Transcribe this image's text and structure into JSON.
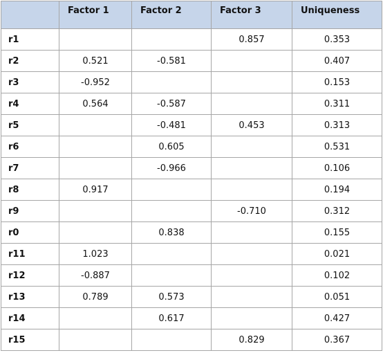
{
  "table": {
    "columns": [
      null,
      "Factor 1",
      "Factor 2",
      "Factor 3",
      "Uniqueness"
    ],
    "rows": [
      [
        "r1",
        null,
        null,
        "0.857",
        "0.353"
      ],
      [
        "r2",
        "0.521",
        "-0.581",
        null,
        "0.407"
      ],
      [
        "r3",
        "-0.952",
        null,
        null,
        "0.153"
      ],
      [
        "r4",
        "0.564",
        "-0.587",
        null,
        "0.311"
      ],
      [
        "r5",
        null,
        "-0.481",
        "0.453",
        "0.313"
      ],
      [
        "r6",
        null,
        "0.605",
        null,
        "0.531"
      ],
      [
        "r7",
        null,
        "-0.966",
        null,
        "0.106"
      ],
      [
        "r8",
        "0.917",
        null,
        null,
        "0.194"
      ],
      [
        "r9",
        null,
        null,
        "-0.710",
        "0.312"
      ],
      [
        "r0",
        null,
        "0.838",
        null,
        "0.155"
      ],
      [
        "r11",
        "1.023",
        null,
        null,
        "0.021"
      ],
      [
        "r12",
        "-0.887",
        null,
        null,
        "0.102"
      ],
      [
        "r13",
        "0.789",
        "0.573",
        null,
        "0.051"
      ],
      [
        "r14",
        null,
        "0.617",
        null,
        "0.427"
      ],
      [
        "r15",
        null,
        null,
        "0.829",
        "0.367"
      ]
    ]
  }
}
